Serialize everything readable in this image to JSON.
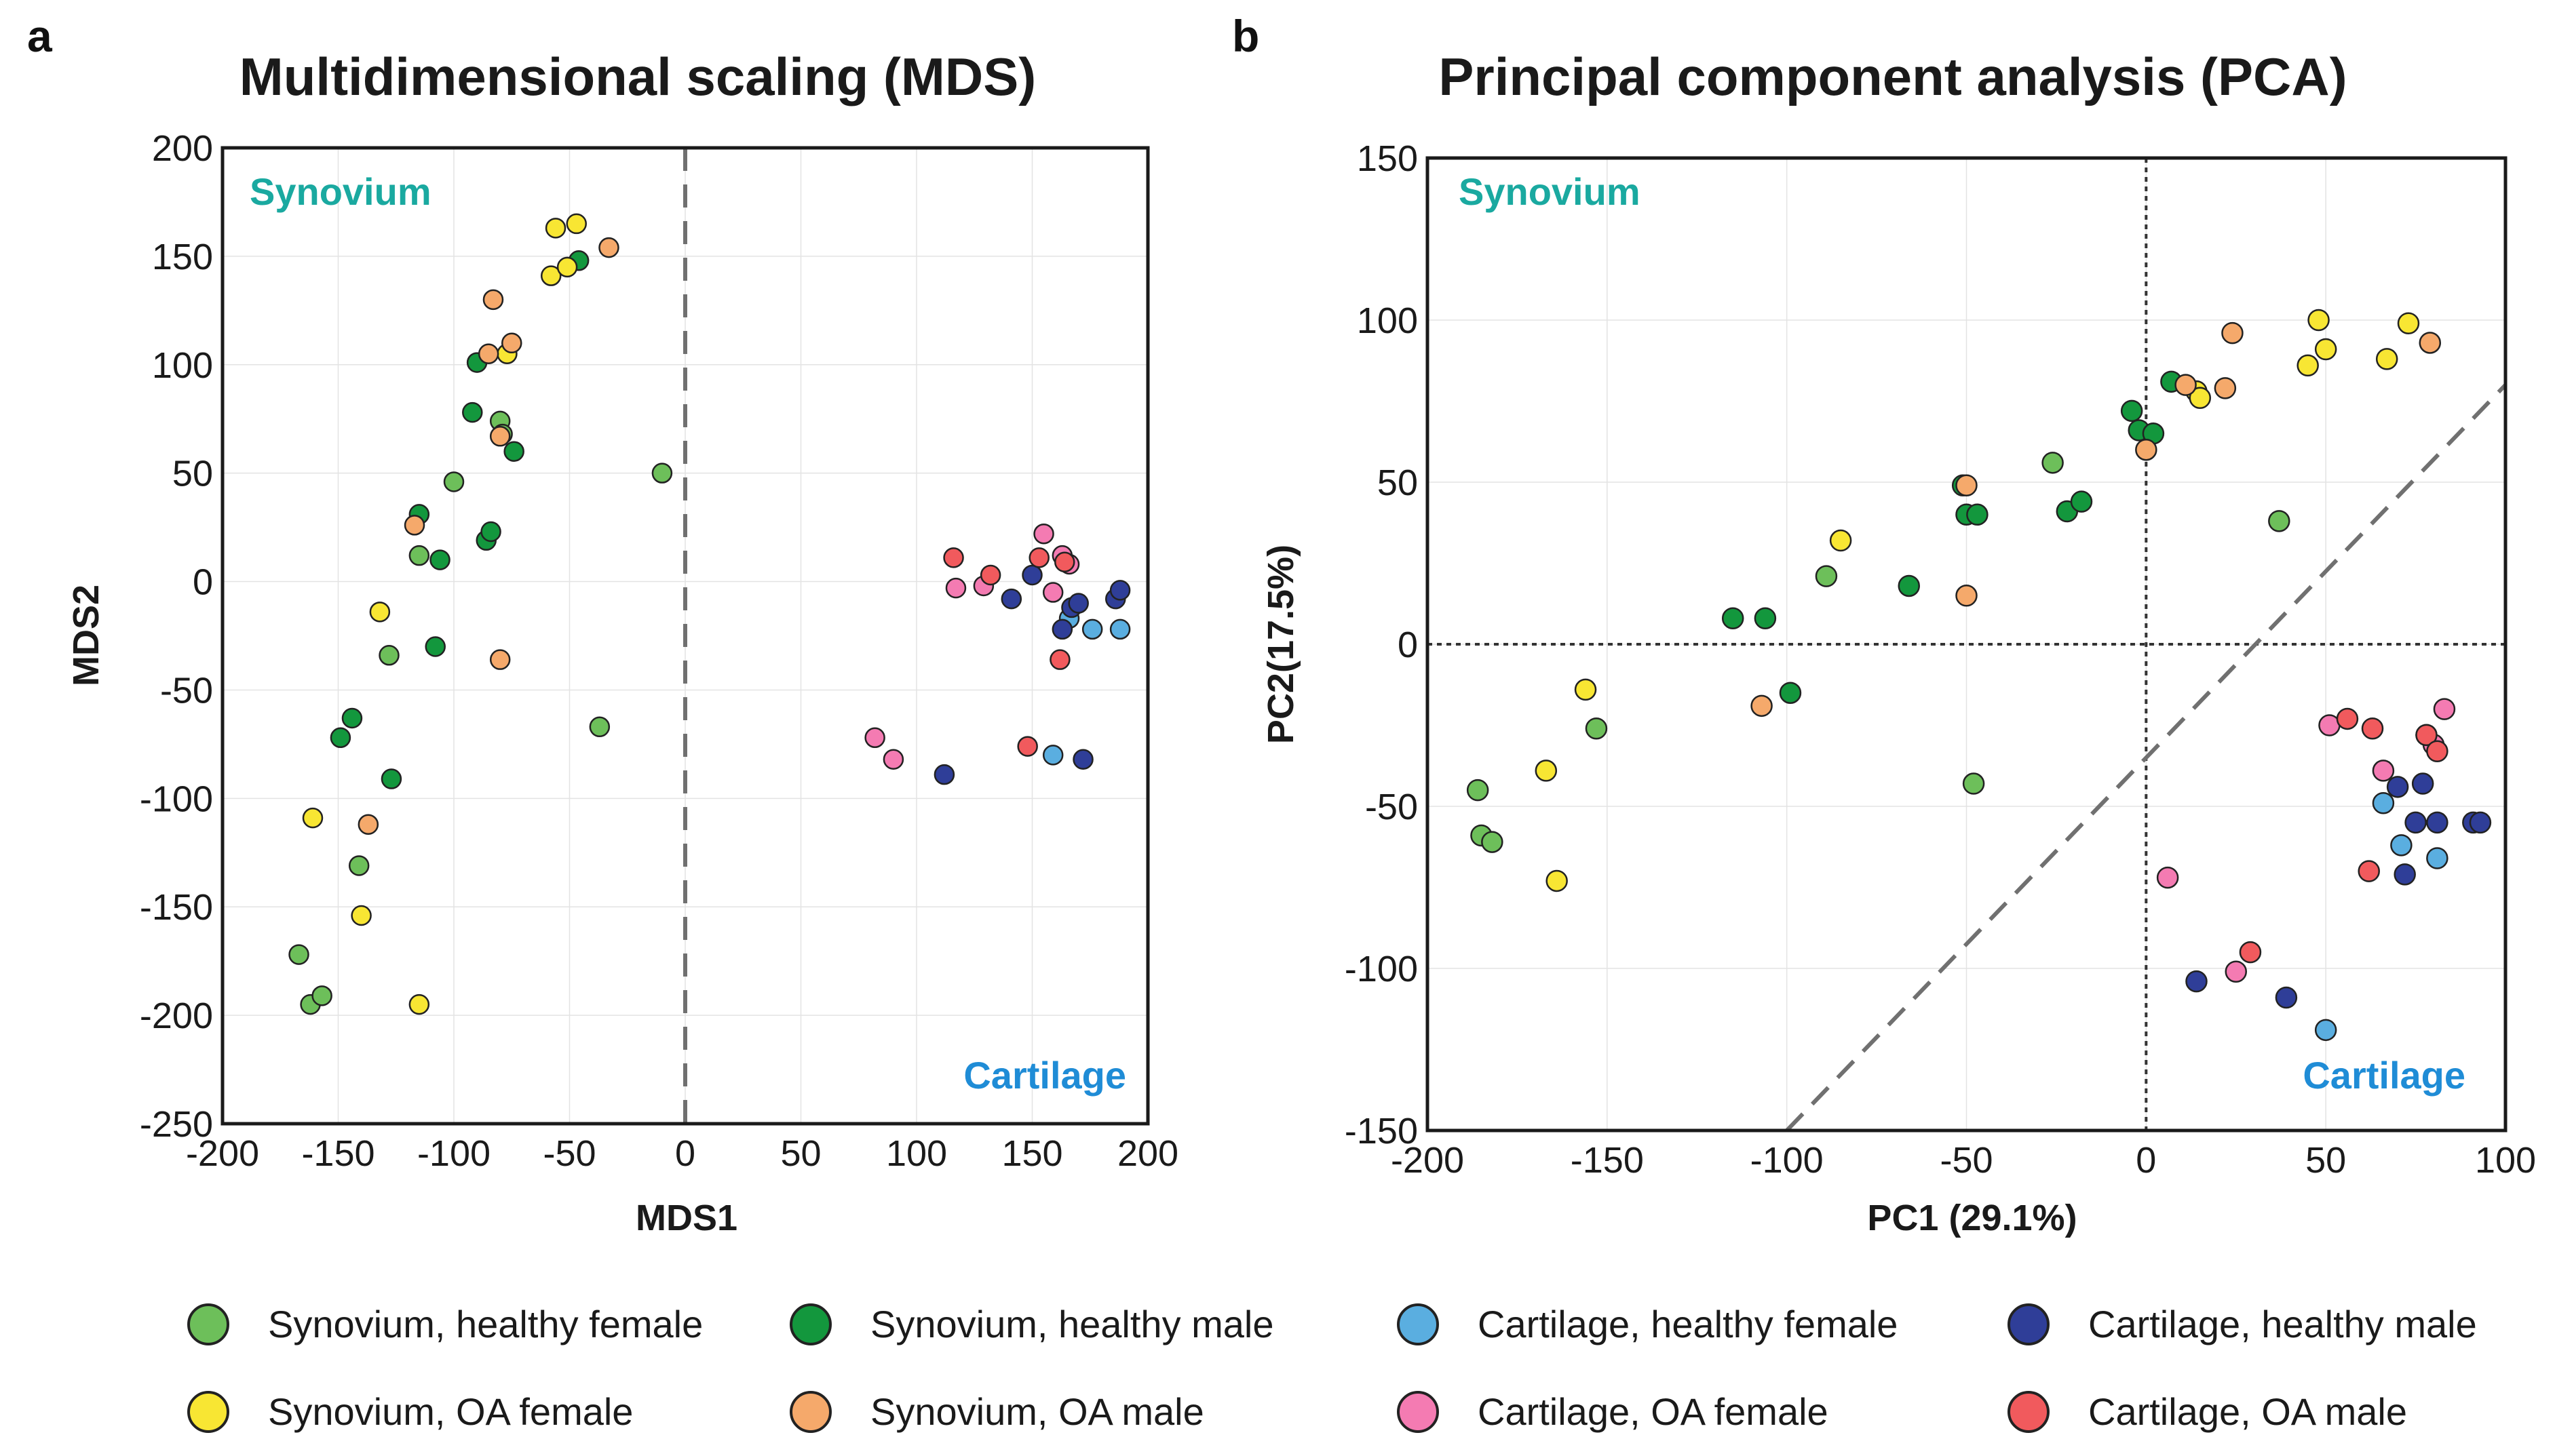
{
  "panel_letters": {
    "a": "a",
    "b": "b"
  },
  "colors": {
    "synovium_healthy_female": "#6dbf5a",
    "synovium_healthy_male": "#13973d",
    "synovium_oa_female": "#f8e633",
    "synovium_oa_male": "#f5a96b",
    "cartilage_healthy_female": "#5aaee0",
    "cartilage_healthy_male": "#2f3e98",
    "cartilage_oa_female": "#f47bb2",
    "cartilage_oa_male": "#f15a5d",
    "synovium_text": "#1aa9a0",
    "cartilage_text": "#1f8cd6",
    "dashed_line": "#707070"
  },
  "legend": [
    {
      "key": "synovium_healthy_female",
      "label": "Synovium, healthy female"
    },
    {
      "key": "synovium_healthy_male",
      "label": "Synovium, healthy male"
    },
    {
      "key": "cartilage_healthy_female",
      "label": "Cartilage, healthy female"
    },
    {
      "key": "cartilage_healthy_male",
      "label": "Cartilage, healthy male"
    },
    {
      "key": "synovium_oa_female",
      "label": "Synovium, OA female"
    },
    {
      "key": "synovium_oa_male",
      "label": "Synovium, OA male"
    },
    {
      "key": "cartilage_oa_female",
      "label": "Cartilage, OA female"
    },
    {
      "key": "cartilage_oa_male",
      "label": "Cartilage, OA male"
    }
  ],
  "chart_data": [
    {
      "type": "scatter",
      "title": "Multidimensional scaling (MDS)",
      "xlabel": "MDS1",
      "ylabel": "MDS2",
      "xlim": [
        -200,
        200
      ],
      "ylim": [
        -250,
        200
      ],
      "xticks": [
        -200,
        -150,
        -100,
        -50,
        0,
        50,
        100,
        150,
        200
      ],
      "yticks": [
        -250,
        -200,
        -150,
        -100,
        -50,
        0,
        50,
        100,
        150,
        200
      ],
      "xtick_labels": [
        "-200",
        "-150",
        "-100",
        "-50",
        "0",
        "50",
        "100",
        "150",
        "200"
      ],
      "ytick_labels": [
        "-250",
        "-200",
        "-150",
        "-100",
        "-50",
        "0",
        "50",
        "100",
        "150",
        "200"
      ],
      "grid": true,
      "region_labels": {
        "top_left": "Synovium",
        "bottom_right": "Cartilage"
      },
      "reference_lines": [
        {
          "kind": "vertical",
          "x": 0,
          "style": "long-dash"
        }
      ],
      "series": [
        {
          "key": "synovium_healthy_female",
          "points": [
            [
              -167,
              -172
            ],
            [
              -162,
              -195
            ],
            [
              -157,
              -191
            ],
            [
              -141,
              -131
            ],
            [
              -128,
              -34
            ],
            [
              -115,
              12
            ],
            [
              -100,
              46
            ],
            [
              -80,
              74
            ],
            [
              -79,
              68
            ],
            [
              -37,
              -67
            ],
            [
              -10,
              50
            ]
          ]
        },
        {
          "key": "synovium_healthy_male",
          "points": [
            [
              -149,
              -72
            ],
            [
              -144,
              -63
            ],
            [
              -127,
              -91
            ],
            [
              -115,
              31
            ],
            [
              -108,
              -30
            ],
            [
              -106,
              10
            ],
            [
              -92,
              78
            ],
            [
              -90,
              101
            ],
            [
              -86,
              19
            ],
            [
              -84,
              23
            ],
            [
              -74,
              60
            ],
            [
              -46,
              148
            ]
          ]
        },
        {
          "key": "synovium_oa_female",
          "points": [
            [
              -161,
              -109
            ],
            [
              -140,
              -154
            ],
            [
              -132,
              -14
            ],
            [
              -115,
              -195
            ],
            [
              -77,
              105
            ],
            [
              -58,
              141
            ],
            [
              -56,
              163
            ],
            [
              -51,
              145
            ],
            [
              -47,
              165
            ]
          ]
        },
        {
          "key": "synovium_oa_male",
          "points": [
            [
              -137,
              -112
            ],
            [
              -117,
              26
            ],
            [
              -85,
              105
            ],
            [
              -83,
              130
            ],
            [
              -80,
              67
            ],
            [
              -80,
              -36
            ],
            [
              -75,
              110
            ],
            [
              -33,
              154
            ]
          ]
        },
        {
          "key": "cartilage_healthy_female",
          "points": [
            [
              159,
              -80
            ],
            [
              166,
              -17
            ],
            [
              176,
              -22
            ],
            [
              188,
              -22
            ]
          ]
        },
        {
          "key": "cartilage_healthy_male",
          "points": [
            [
              112,
              -89
            ],
            [
              141,
              -8
            ],
            [
              150,
              3
            ],
            [
              163,
              -22
            ],
            [
              167,
              -12
            ],
            [
              170,
              -10
            ],
            [
              172,
              -82
            ],
            [
              186,
              -8
            ],
            [
              188,
              -4
            ]
          ]
        },
        {
          "key": "cartilage_oa_female",
          "points": [
            [
              82,
              -72
            ],
            [
              90,
              -82
            ],
            [
              117,
              -3
            ],
            [
              129,
              -2
            ],
            [
              155,
              22
            ],
            [
              159,
              -5
            ],
            [
              163,
              12
            ],
            [
              166,
              8
            ]
          ]
        },
        {
          "key": "cartilage_oa_male",
          "points": [
            [
              116,
              11
            ],
            [
              132,
              3
            ],
            [
              148,
              -76
            ],
            [
              153,
              11
            ],
            [
              162,
              -36
            ],
            [
              164,
              9
            ]
          ]
        }
      ]
    },
    {
      "type": "scatter",
      "title": "Principal component analysis (PCA)",
      "xlabel": "PC1 (29.1%)",
      "ylabel": "PC2(17.5%)",
      "xlim": [
        -200,
        100
      ],
      "ylim": [
        -150,
        150
      ],
      "xticks": [
        -200,
        -150,
        -100,
        -50,
        0,
        50,
        100
      ],
      "yticks": [
        -150,
        -100,
        -50,
        0,
        50,
        100,
        150
      ],
      "xtick_labels": [
        "-200",
        "-150",
        "-100",
        "-50",
        "0",
        "50",
        "100"
      ],
      "ytick_labels": [
        "-150",
        "-100",
        "-50",
        "0",
        "50",
        "100",
        "150"
      ],
      "grid": true,
      "region_labels": {
        "top_left": "Synovium",
        "bottom_right": "Cartilage"
      },
      "reference_lines": [
        {
          "kind": "vertical",
          "x": 0,
          "style": "dotted"
        },
        {
          "kind": "horizontal",
          "y": 0,
          "style": "dotted"
        },
        {
          "kind": "segment",
          "from": [
            -100,
            -150
          ],
          "to": [
            100,
            80
          ],
          "style": "long-dash"
        }
      ],
      "series": [
        {
          "key": "synovium_healthy_female",
          "points": [
            [
              -186,
              -45
            ],
            [
              -185,
              -59
            ],
            [
              -182,
              -61
            ],
            [
              -153,
              -26
            ],
            [
              -89,
              21
            ],
            [
              -48,
              -43
            ],
            [
              -26,
              56
            ],
            [
              37,
              38
            ]
          ]
        },
        {
          "key": "synovium_healthy_male",
          "points": [
            [
              -115,
              8
            ],
            [
              -106,
              8
            ],
            [
              -99,
              -15
            ],
            [
              -66,
              18
            ],
            [
              -51,
              49
            ],
            [
              -50,
              40
            ],
            [
              -47,
              40
            ],
            [
              -22,
              41
            ],
            [
              -18,
              44
            ],
            [
              -4,
              72
            ],
            [
              -2,
              66
            ],
            [
              2,
              65
            ],
            [
              7,
              81
            ]
          ]
        },
        {
          "key": "synovium_oa_female",
          "points": [
            [
              -167,
              -39
            ],
            [
              -164,
              -73
            ],
            [
              -156,
              -14
            ],
            [
              -85,
              32
            ],
            [
              14,
              78
            ],
            [
              15,
              76
            ],
            [
              45,
              86
            ],
            [
              48,
              100
            ],
            [
              50,
              91
            ],
            [
              67,
              88
            ],
            [
              73,
              99
            ]
          ]
        },
        {
          "key": "synovium_oa_male",
          "points": [
            [
              -107,
              -19
            ],
            [
              -50,
              15
            ],
            [
              -50,
              49
            ],
            [
              0,
              60
            ],
            [
              11,
              80
            ],
            [
              22,
              79
            ],
            [
              24,
              96
            ],
            [
              79,
              93
            ]
          ]
        },
        {
          "key": "cartilage_healthy_female",
          "points": [
            [
              50,
              -119
            ],
            [
              66,
              -49
            ],
            [
              71,
              -62
            ],
            [
              81,
              -66
            ]
          ]
        },
        {
          "key": "cartilage_healthy_male",
          "points": [
            [
              14,
              -104
            ],
            [
              39,
              -109
            ],
            [
              70,
              -44
            ],
            [
              72,
              -71
            ],
            [
              75,
              -55
            ],
            [
              77,
              -43
            ],
            [
              81,
              -55
            ],
            [
              91,
              -55
            ],
            [
              93,
              -55
            ]
          ]
        },
        {
          "key": "cartilage_oa_female",
          "points": [
            [
              6,
              -72
            ],
            [
              25,
              -101
            ],
            [
              51,
              -25
            ],
            [
              66,
              -39
            ],
            [
              78,
              -28
            ],
            [
              80,
              -31
            ],
            [
              83,
              -20
            ]
          ]
        },
        {
          "key": "cartilage_oa_male",
          "points": [
            [
              29,
              -95
            ],
            [
              56,
              -23
            ],
            [
              62,
              -70
            ],
            [
              63,
              -26
            ],
            [
              78,
              -28
            ],
            [
              81,
              -33
            ]
          ]
        }
      ]
    }
  ]
}
